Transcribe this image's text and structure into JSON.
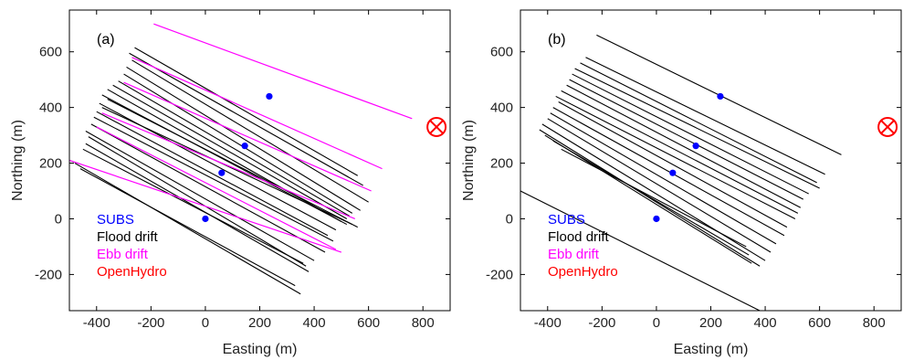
{
  "colors": {
    "subs": "#0000ff",
    "flood": "#000000",
    "ebb": "#ff00ff",
    "openhydro": "#ff0000"
  },
  "legend": {
    "subs": "SUBS",
    "flood": "Flood drift",
    "ebb": "Ebb drift",
    "openhydro": "OpenHydro"
  },
  "chart_data": [
    {
      "type": "line",
      "panel_label": "(a)",
      "xlabel": "Easting (m)",
      "ylabel": "Northing (m)",
      "xlim": [
        -500,
        900
      ],
      "ylim": [
        -330,
        750
      ],
      "xticks": [
        -400,
        -200,
        0,
        200,
        400,
        600,
        800
      ],
      "yticks": [
        -200,
        0,
        200,
        400,
        600
      ],
      "legend_position": "lower-left",
      "subs_points": [
        [
          0,
          0
        ],
        [
          60,
          165
        ],
        [
          145,
          262
        ],
        [
          235,
          440
        ]
      ],
      "openhydro": [
        850,
        330
      ],
      "flood_tracks": [
        [
          [
            -260,
            615
          ],
          [
            560,
            155
          ]
        ],
        [
          [
            -280,
            595
          ],
          [
            580,
            120
          ]
        ],
        [
          [
            -270,
            570
          ],
          [
            600,
            60
          ]
        ],
        [
          [
            -290,
            545
          ],
          [
            570,
            30
          ]
        ],
        [
          [
            -300,
            520
          ],
          [
            540,
            20
          ]
        ],
        [
          [
            -320,
            495
          ],
          [
            530,
            10
          ]
        ],
        [
          [
            -340,
            480
          ],
          [
            520,
            0
          ]
        ],
        [
          [
            -360,
            465
          ],
          [
            500,
            -10
          ]
        ],
        [
          [
            -380,
            445
          ],
          [
            520,
            -20
          ]
        ],
        [
          [
            -360,
            430
          ],
          [
            560,
            -30
          ]
        ],
        [
          [
            -390,
            415
          ],
          [
            480,
            -40
          ]
        ],
        [
          [
            -380,
            400
          ],
          [
            540,
            -20
          ]
        ],
        [
          [
            -400,
            385
          ],
          [
            450,
            -60
          ]
        ],
        [
          [
            -410,
            365
          ],
          [
            470,
            -80
          ]
        ],
        [
          [
            -420,
            340
          ],
          [
            440,
            -120
          ]
        ],
        [
          [
            -440,
            315
          ],
          [
            400,
            -150
          ]
        ],
        [
          [
            -430,
            295
          ],
          [
            370,
            -170
          ]
        ],
        [
          [
            -440,
            270
          ],
          [
            380,
            -190
          ]
        ],
        [
          [
            -450,
            250
          ],
          [
            360,
            -160
          ]
        ],
        [
          [
            -480,
            200
          ],
          [
            350,
            -270
          ]
        ],
        [
          [
            -460,
            180
          ],
          [
            330,
            -240
          ]
        ]
      ],
      "ebb_tracks": [
        [
          [
            -190,
            700
          ],
          [
            760,
            360
          ]
        ],
        [
          [
            -270,
            580
          ],
          [
            650,
            180
          ]
        ],
        [
          [
            -300,
            490
          ],
          [
            610,
            100
          ]
        ],
        [
          [
            -380,
            380
          ],
          [
            550,
            0
          ]
        ],
        [
          [
            -400,
            330
          ],
          [
            480,
            -110
          ]
        ],
        [
          [
            -500,
            210
          ],
          [
            500,
            -120
          ]
        ]
      ]
    },
    {
      "type": "line",
      "panel_label": "(b)",
      "xlabel": "Easting (m)",
      "ylabel": "Northing (m)",
      "xlim": [
        -500,
        900
      ],
      "ylim": [
        -330,
        750
      ],
      "xticks": [
        -400,
        -200,
        0,
        200,
        400,
        600,
        800
      ],
      "yticks": [
        -200,
        0,
        200,
        400,
        600
      ],
      "legend_position": "lower-left",
      "subs_points": [
        [
          0,
          0
        ],
        [
          60,
          165
        ],
        [
          145,
          262
        ],
        [
          235,
          440
        ]
      ],
      "openhydro": [
        850,
        330
      ],
      "flood_tracks": [
        [
          [
            -220,
            660
          ],
          [
            680,
            230
          ]
        ],
        [
          [
            -260,
            580
          ],
          [
            620,
            160
          ]
        ],
        [
          [
            -280,
            560
          ],
          [
            590,
            130
          ]
        ],
        [
          [
            -300,
            540
          ],
          [
            600,
            110
          ]
        ],
        [
          [
            -310,
            520
          ],
          [
            560,
            90
          ]
        ],
        [
          [
            -320,
            500
          ],
          [
            540,
            70
          ]
        ],
        [
          [
            -330,
            480
          ],
          [
            530,
            40
          ]
        ],
        [
          [
            -350,
            460
          ],
          [
            520,
            20
          ]
        ],
        [
          [
            -370,
            440
          ],
          [
            510,
            0
          ]
        ],
        [
          [
            -360,
            420
          ],
          [
            480,
            -30
          ]
        ],
        [
          [
            -380,
            400
          ],
          [
            470,
            -60
          ]
        ],
        [
          [
            -390,
            380
          ],
          [
            440,
            -90
          ]
        ],
        [
          [
            -400,
            360
          ],
          [
            420,
            -120
          ]
        ],
        [
          [
            -420,
            340
          ],
          [
            400,
            -150
          ]
        ],
        [
          [
            -430,
            320
          ],
          [
            380,
            -170
          ]
        ],
        [
          [
            -410,
            300
          ],
          [
            350,
            -160
          ]
        ],
        [
          [
            -380,
            280
          ],
          [
            340,
            -130
          ]
        ],
        [
          [
            -350,
            250
          ],
          [
            330,
            -100
          ]
        ],
        [
          [
            -500,
            100
          ],
          [
            380,
            -330
          ]
        ]
      ],
      "ebb_tracks": []
    }
  ]
}
